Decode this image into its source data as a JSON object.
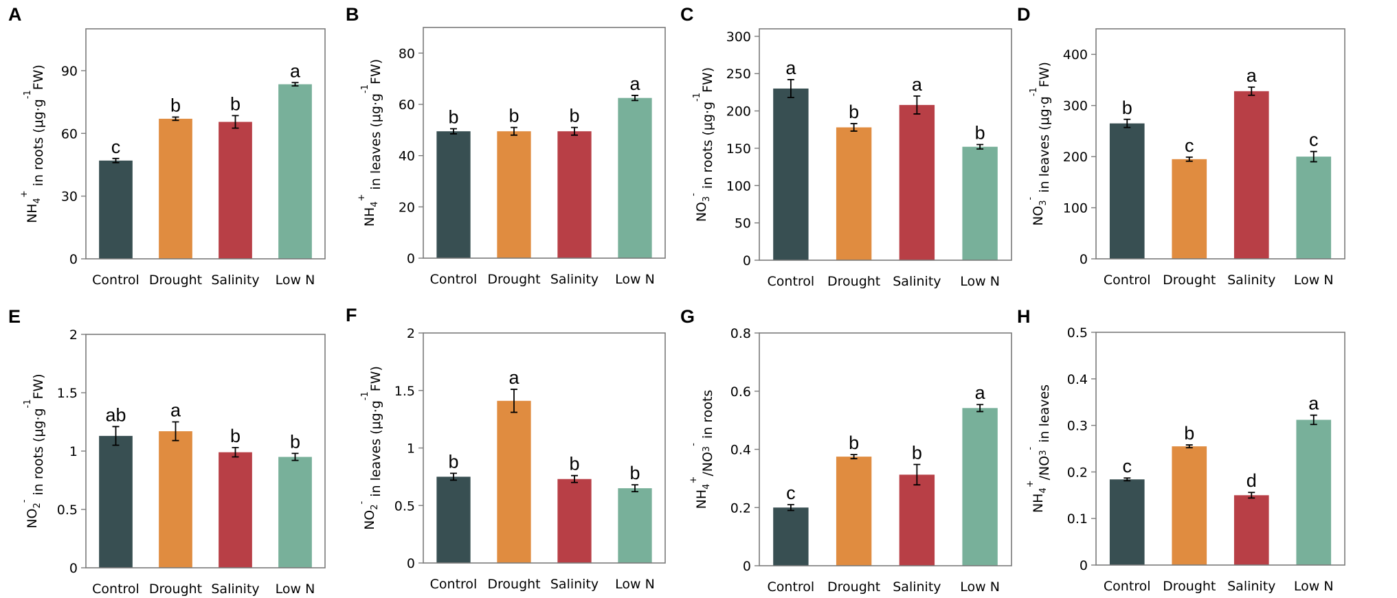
{
  "colors": {
    "Control": "#384f52",
    "Drought": "#e08c40",
    "Salinity": "#b83f46",
    "Low N": "#78b09a",
    "axis": "#7a7a7a"
  },
  "chart_data": [
    {
      "type": "bar",
      "panel": "A",
      "ylabel": {
        "pre": "NH",
        "sub": "4",
        "sup": "+",
        "post": " in roots (μg·g",
        "sup2": "-1",
        "post2": "FW)"
      },
      "categories": [
        "Control",
        "Drought",
        "Salinity",
        "Low N"
      ],
      "values": [
        47,
        67,
        65.5,
        83.5
      ],
      "errors": [
        1,
        0.8,
        3,
        0.8
      ],
      "letters": [
        "c",
        "b",
        "b",
        "a"
      ],
      "ylim": [
        0,
        110
      ],
      "yticks": [
        "0",
        "30",
        "60",
        "90"
      ],
      "ytick_values": [
        0,
        30,
        60,
        90
      ]
    },
    {
      "type": "bar",
      "panel": "B",
      "ylabel": {
        "pre": "NH",
        "sub": "4",
        "sup": "+",
        "post": " in leaves (μg·g",
        "sup2": "-1",
        "post2": "FW)"
      },
      "categories": [
        "Control",
        "Drought",
        "Salinity",
        "Low N"
      ],
      "values": [
        49.5,
        49.5,
        49.5,
        62.5
      ],
      "errors": [
        1,
        1.5,
        1.5,
        1
      ],
      "letters": [
        "b",
        "b",
        "b",
        "a"
      ],
      "ylim": [
        0,
        90
      ],
      "yticks": [
        "0",
        "20",
        "40",
        "60",
        "80"
      ],
      "ytick_values": [
        0,
        20,
        40,
        60,
        80
      ]
    },
    {
      "type": "bar",
      "panel": "C",
      "ylabel": {
        "pre": "NO",
        "sub": "3",
        "sup": "-",
        "post": " in roots (μg·g",
        "sup2": "-1",
        "post2": "FW)"
      },
      "categories": [
        "Control",
        "Drought",
        "Salinity",
        "Low N"
      ],
      "values": [
        230,
        178,
        208,
        152
      ],
      "errors": [
        12,
        5,
        12,
        3
      ],
      "letters": [
        "a",
        "b",
        "a",
        "b"
      ],
      "ylim": [
        0,
        310
      ],
      "yticks": [
        "0",
        "50",
        "100",
        "150",
        "200",
        "250",
        "300"
      ],
      "ytick_values": [
        0,
        50,
        100,
        150,
        200,
        250,
        300
      ]
    },
    {
      "type": "bar",
      "panel": "D",
      "ylabel": {
        "pre": "NO",
        "sub": "3",
        "sup": "-",
        "post": " in leaves (μg·g",
        "sup2": "-1",
        "post2": "FW)"
      },
      "categories": [
        "Control",
        "Drought",
        "Salinity",
        "Low N"
      ],
      "values": [
        265,
        195,
        328,
        200
      ],
      "errors": [
        8,
        4,
        8,
        10
      ],
      "letters": [
        "b",
        "c",
        "a",
        "c"
      ],
      "ylim": [
        0,
        450
      ],
      "yticks": [
        "0",
        "100",
        "200",
        "300",
        "400"
      ],
      "ytick_values": [
        0,
        100,
        200,
        300,
        400
      ]
    },
    {
      "type": "bar",
      "panel": "E",
      "ylabel": {
        "pre": "NO",
        "sub": "2",
        "sup": "-",
        "post": " in roots (μg·g",
        "sup2": "-1",
        "post2": "FW)"
      },
      "categories": [
        "Control",
        "Drought",
        "Salinity",
        "Low N"
      ],
      "values": [
        1.13,
        1.17,
        0.99,
        0.95
      ],
      "errors": [
        0.08,
        0.08,
        0.04,
        0.03
      ],
      "letters": [
        "ab",
        "a",
        "b",
        "b"
      ],
      "ylim": [
        0,
        2
      ],
      "yticks": [
        "0",
        "0.5",
        "1",
        "1.5",
        "2"
      ],
      "ytick_values": [
        0,
        0.5,
        1,
        1.5,
        2
      ]
    },
    {
      "type": "bar",
      "panel": "F",
      "ylabel": {
        "pre": "NO",
        "sub": "2",
        "sup": "-",
        "post": " in leaves (μg·g",
        "sup2": "-1",
        "post2": "FW)"
      },
      "categories": [
        "Control",
        "Drought",
        "Salinity",
        "Low N"
      ],
      "values": [
        0.75,
        1.41,
        0.73,
        0.65
      ],
      "errors": [
        0.03,
        0.1,
        0.03,
        0.03
      ],
      "letters": [
        "b",
        "a",
        "b",
        "b"
      ],
      "ylim": [
        0,
        2
      ],
      "yticks": [
        "0",
        "0.5",
        "1",
        "1.5",
        "2"
      ],
      "ytick_values": [
        0,
        0.5,
        1,
        1.5,
        2
      ]
    },
    {
      "type": "bar",
      "panel": "G",
      "ylabel": {
        "pre": "NH",
        "sub": "4",
        "sup": "+",
        "post": "/NO",
        "sub2": "3",
        "sup2": "-",
        "post2": " in roots"
      },
      "categories": [
        "Control",
        "Drought",
        "Salinity",
        "Low N"
      ],
      "values": [
        0.2,
        0.375,
        0.313,
        0.542
      ],
      "errors": [
        0.01,
        0.007,
        0.035,
        0.012
      ],
      "letters": [
        "c",
        "b",
        "b",
        "a"
      ],
      "ylim": [
        0,
        0.8
      ],
      "yticks": [
        "0",
        "0.2",
        "0.4",
        "0.6",
        "0.8"
      ],
      "ytick_values": [
        0,
        0.2,
        0.4,
        0.6,
        0.8
      ]
    },
    {
      "type": "bar",
      "panel": "H",
      "ylabel": {
        "pre": "NH",
        "sub": "4",
        "sup": "+",
        "post": "/NO",
        "sub2": "3",
        "sup2": "-",
        "post2": " in leaves"
      },
      "categories": [
        "Control",
        "Drought",
        "Salinity",
        "Low N"
      ],
      "values": [
        0.184,
        0.255,
        0.15,
        0.312
      ],
      "errors": [
        0.003,
        0.003,
        0.006,
        0.01
      ],
      "letters": [
        "c",
        "b",
        "d",
        "a"
      ],
      "ylim": [
        0,
        0.5
      ],
      "yticks": [
        "0",
        "0.1",
        "0.2",
        "0.3",
        "0.4",
        "0.5"
      ],
      "ytick_values": [
        0,
        0.1,
        0.2,
        0.3,
        0.4,
        0.5
      ]
    }
  ]
}
